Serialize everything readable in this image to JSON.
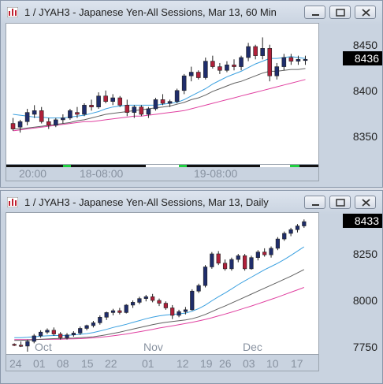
{
  "windows": [
    {
      "title": "1 / JYAH3 - Japanese Yen-All Sessions, Mar 13, 60 Min",
      "last_price": "8436",
      "y_ticks": [
        "8450",
        "8400",
        "8350"
      ],
      "x_ticks": [
        "20:00",
        "18-08:00",
        "19-08:00"
      ],
      "chart_data": {
        "type": "candlestick",
        "y_range": [
          8320,
          8475
        ],
        "ohlc": [
          [
            8366,
            8372,
            8358,
            8360
          ],
          [
            8362,
            8370,
            8356,
            8368
          ],
          [
            8368,
            8382,
            8364,
            8378
          ],
          [
            8376,
            8386,
            8372,
            8380
          ],
          [
            8380,
            8384,
            8366,
            8368
          ],
          [
            8368,
            8372,
            8360,
            8364
          ],
          [
            8364,
            8372,
            8362,
            8370
          ],
          [
            8370,
            8376,
            8366,
            8372
          ],
          [
            8372,
            8382,
            8370,
            8380
          ],
          [
            8378,
            8384,
            8372,
            8376
          ],
          [
            8376,
            8388,
            8374,
            8386
          ],
          [
            8386,
            8392,
            8380,
            8384
          ],
          [
            8384,
            8400,
            8382,
            8396
          ],
          [
            8396,
            8402,
            8388,
            8390
          ],
          [
            8390,
            8398,
            8386,
            8394
          ],
          [
            8394,
            8396,
            8384,
            8386
          ],
          [
            8386,
            8392,
            8374,
            8378
          ],
          [
            8378,
            8386,
            8372,
            8384
          ],
          [
            8384,
            8386,
            8374,
            8376
          ],
          [
            8376,
            8384,
            8372,
            8382
          ],
          [
            8382,
            8394,
            8380,
            8392
          ],
          [
            8392,
            8398,
            8386,
            8388
          ],
          [
            8388,
            8392,
            8384,
            8390
          ],
          [
            8390,
            8404,
            8388,
            8402
          ],
          [
            8402,
            8420,
            8398,
            8418
          ],
          [
            8418,
            8428,
            8412,
            8422
          ],
          [
            8422,
            8424,
            8414,
            8416
          ],
          [
            8416,
            8438,
            8414,
            8434
          ],
          [
            8434,
            8440,
            8426,
            8428
          ],
          [
            8428,
            8432,
            8420,
            8424
          ],
          [
            8424,
            8434,
            8422,
            8430
          ],
          [
            8430,
            8436,
            8424,
            8428
          ],
          [
            8428,
            8440,
            8424,
            8438
          ],
          [
            8438,
            8454,
            8434,
            8450
          ],
          [
            8450,
            8452,
            8436,
            8440
          ],
          [
            8440,
            8460,
            8436,
            8448
          ],
          [
            8448,
            8452,
            8412,
            8418
          ],
          [
            8418,
            8432,
            8414,
            8428
          ],
          [
            8428,
            8442,
            8424,
            8438
          ],
          [
            8438,
            8442,
            8430,
            8434
          ],
          [
            8434,
            8440,
            8430,
            8436
          ],
          [
            8436,
            8440,
            8430,
            8436
          ]
        ],
        "ma_fast": [
          8376,
          8375,
          8374,
          8373,
          8373,
          8372,
          8372,
          8372,
          8373,
          8374,
          8375,
          8377,
          8379,
          8382,
          8384,
          8385,
          8386,
          8386,
          8386,
          8386,
          8386,
          8387,
          8388,
          8389,
          8392,
          8396,
          8400,
          8404,
          8409,
          8413,
          8417,
          8420,
          8423,
          8427,
          8431,
          8434,
          8437,
          8437,
          8438,
          8439,
          8438,
          8437
        ],
        "ma_slow": [
          8360,
          8360,
          8361,
          8362,
          8363,
          8364,
          8365,
          8366,
          8367,
          8369,
          8370,
          8372,
          8374,
          8376,
          8377,
          8378,
          8379,
          8380,
          8381,
          8382,
          8383,
          8384,
          8385,
          8387,
          8389,
          8392,
          8394,
          8397,
          8401,
          8404,
          8407,
          8410,
          8412,
          8415,
          8418,
          8421,
          8423,
          8423,
          8424,
          8425,
          8425,
          8426
        ],
        "ma_long": [
          8358,
          8359,
          8360,
          8361,
          8362,
          8363,
          8364,
          8365,
          8366,
          8367,
          8368,
          8368,
          8369,
          8370,
          8371,
          8372,
          8373,
          8374,
          8374,
          8375,
          8376,
          8377,
          8378,
          8379,
          8380,
          8382,
          8384,
          8386,
          8388,
          8390,
          8392,
          8394,
          8396,
          8398,
          8400,
          8402,
          8404,
          8406,
          8408,
          8410,
          8412,
          8414
        ],
        "colors": {
          "up": "#1f2d6b",
          "down": "#b0203a",
          "ma_fast": "#3aa0e0",
          "ma_slow": "#606060",
          "ma_long": "#e040a0"
        }
      }
    },
    {
      "title": "1 / JYAH3 - Japanese Yen-All Sessions, Mar 13, Daily",
      "last_price": "8433",
      "y_ticks": [
        "8250",
        "8000",
        "7750"
      ],
      "x_ticks": [
        "24",
        "01",
        "08",
        "15",
        "22",
        "01",
        "12",
        "19",
        "26",
        "03",
        "10",
        "17"
      ],
      "month_labels": [
        "Oct",
        "Nov",
        "Dec"
      ],
      "chart_data": {
        "type": "candlestick",
        "y_range": [
          7680,
          8480
        ],
        "ohlc": [
          [
            7775,
            7780,
            7765,
            7770
          ],
          [
            7770,
            7790,
            7760,
            7765
          ],
          [
            7765,
            7800,
            7735,
            7790
          ],
          [
            7790,
            7830,
            7780,
            7820
          ],
          [
            7820,
            7850,
            7810,
            7840
          ],
          [
            7840,
            7860,
            7830,
            7850
          ],
          [
            7850,
            7865,
            7820,
            7830
          ],
          [
            7830,
            7840,
            7800,
            7810
          ],
          [
            7810,
            7835,
            7800,
            7825
          ],
          [
            7825,
            7845,
            7815,
            7835
          ],
          [
            7835,
            7870,
            7825,
            7860
          ],
          [
            7860,
            7880,
            7850,
            7875
          ],
          [
            7875,
            7900,
            7865,
            7890
          ],
          [
            7890,
            7930,
            7880,
            7920
          ],
          [
            7920,
            7950,
            7905,
            7945
          ],
          [
            7945,
            7965,
            7930,
            7955
          ],
          [
            7955,
            7970,
            7935,
            7945
          ],
          [
            7945,
            7990,
            7940,
            7985
          ],
          [
            7985,
            8010,
            7970,
            8000
          ],
          [
            8000,
            8030,
            7990,
            8020
          ],
          [
            8020,
            8040,
            8005,
            8030
          ],
          [
            8030,
            8045,
            8000,
            8010
          ],
          [
            8010,
            8020,
            7980,
            7995
          ],
          [
            7995,
            8005,
            7960,
            7970
          ],
          [
            7970,
            7985,
            7910,
            7930
          ],
          [
            7930,
            7960,
            7920,
            7950
          ],
          [
            7950,
            7975,
            7935,
            7960
          ],
          [
            7960,
            8070,
            7955,
            8060
          ],
          [
            8060,
            8100,
            8050,
            8090
          ],
          [
            8090,
            8200,
            8080,
            8190
          ],
          [
            8190,
            8270,
            8180,
            8260
          ],
          [
            8260,
            8275,
            8200,
            8210
          ],
          [
            8210,
            8230,
            8170,
            8180
          ],
          [
            8180,
            8240,
            8170,
            8230
          ],
          [
            8230,
            8260,
            8215,
            8250
          ],
          [
            8250,
            8260,
            8170,
            8180
          ],
          [
            8180,
            8250,
            8175,
            8240
          ],
          [
            8240,
            8280,
            8225,
            8270
          ],
          [
            8270,
            8290,
            8245,
            8255
          ],
          [
            8255,
            8300,
            8240,
            8290
          ],
          [
            8290,
            8350,
            8280,
            8340
          ],
          [
            8340,
            8380,
            8330,
            8370
          ],
          [
            8370,
            8400,
            8355,
            8390
          ],
          [
            8390,
            8420,
            8375,
            8410
          ],
          [
            8410,
            8445,
            8400,
            8433
          ]
        ],
        "ma_fast": [
          7810,
          7810,
          7812,
          7815,
          7818,
          7820,
          7822,
          7822,
          7823,
          7825,
          7828,
          7832,
          7838,
          7846,
          7855,
          7865,
          7873,
          7882,
          7892,
          7902,
          7912,
          7920,
          7927,
          7932,
          7935,
          7938,
          7942,
          7952,
          7966,
          7985,
          8008,
          8030,
          8050,
          8072,
          8095,
          8115,
          8135,
          8155,
          8175,
          8192,
          8210,
          8230,
          8252,
          8275,
          8298
        ],
        "ma_slow": [
          7795,
          7796,
          7797,
          7799,
          7801,
          7803,
          7805,
          7806,
          7807,
          7808,
          7810,
          7812,
          7815,
          7820,
          7826,
          7833,
          7840,
          7848,
          7856,
          7864,
          7872,
          7880,
          7887,
          7893,
          7897,
          7901,
          7905,
          7912,
          7922,
          7935,
          7950,
          7966,
          7980,
          7996,
          8012,
          8028,
          8044,
          8060,
          8076,
          8092,
          8108,
          8124,
          8140,
          8158,
          8176
        ],
        "ma_long": [
          7800,
          7800,
          7800,
          7800,
          7801,
          7801,
          7802,
          7802,
          7803,
          7804,
          7805,
          7807,
          7809,
          7812,
          7816,
          7820,
          7825,
          7830,
          7836,
          7842,
          7848,
          7855,
          7862,
          7868,
          7874,
          7880,
          7886,
          7893,
          7900,
          7908,
          7917,
          7927,
          7937,
          7947,
          7958,
          7969,
          7980,
          7992,
          8004,
          8016,
          8028,
          8041,
          8054,
          8067,
          8080
        ],
        "colors": {
          "up": "#1f2d6b",
          "down": "#b0203a",
          "ma_fast": "#3aa0e0",
          "ma_slow": "#606060",
          "ma_long": "#e040a0"
        }
      }
    }
  ]
}
